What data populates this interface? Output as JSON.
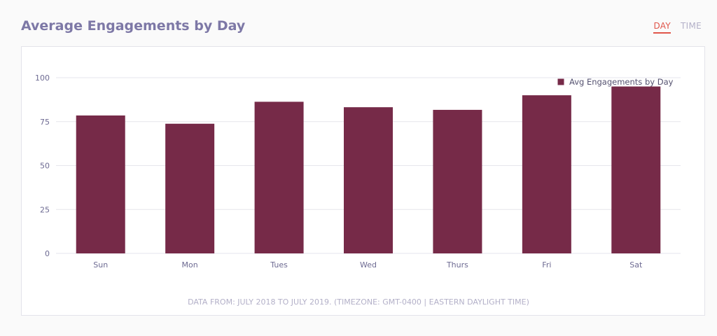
{
  "header": {
    "title": "Average Engagements by Day",
    "tabs": [
      {
        "label": "DAY",
        "active": true
      },
      {
        "label": "TIME",
        "active": false
      }
    ]
  },
  "colors": {
    "bar": "#762a48",
    "title": "#7d78a6",
    "active_tab": "#e0554a",
    "muted": "#b3b0c8",
    "axis_text": "#6d6a92"
  },
  "chart_data": {
    "type": "bar",
    "categories": [
      "Sun",
      "Mon",
      "Tues",
      "Wed",
      "Thurs",
      "Fri",
      "Sat"
    ],
    "series": [
      {
        "name": "Avg Engagements by Day",
        "values": [
          78.5,
          73.8,
          86.3,
          83.2,
          81.7,
          90.0,
          95.0
        ]
      }
    ],
    "ylim": [
      0,
      100
    ],
    "yticks": [
      0,
      25,
      50,
      75,
      100
    ],
    "grid": true,
    "legend": "top-right"
  },
  "footnote": "DATA FROM: JULY 2018 TO JULY 2019. (TIMEZONE: GMT-0400 | EASTERN DAYLIGHT TIME)"
}
